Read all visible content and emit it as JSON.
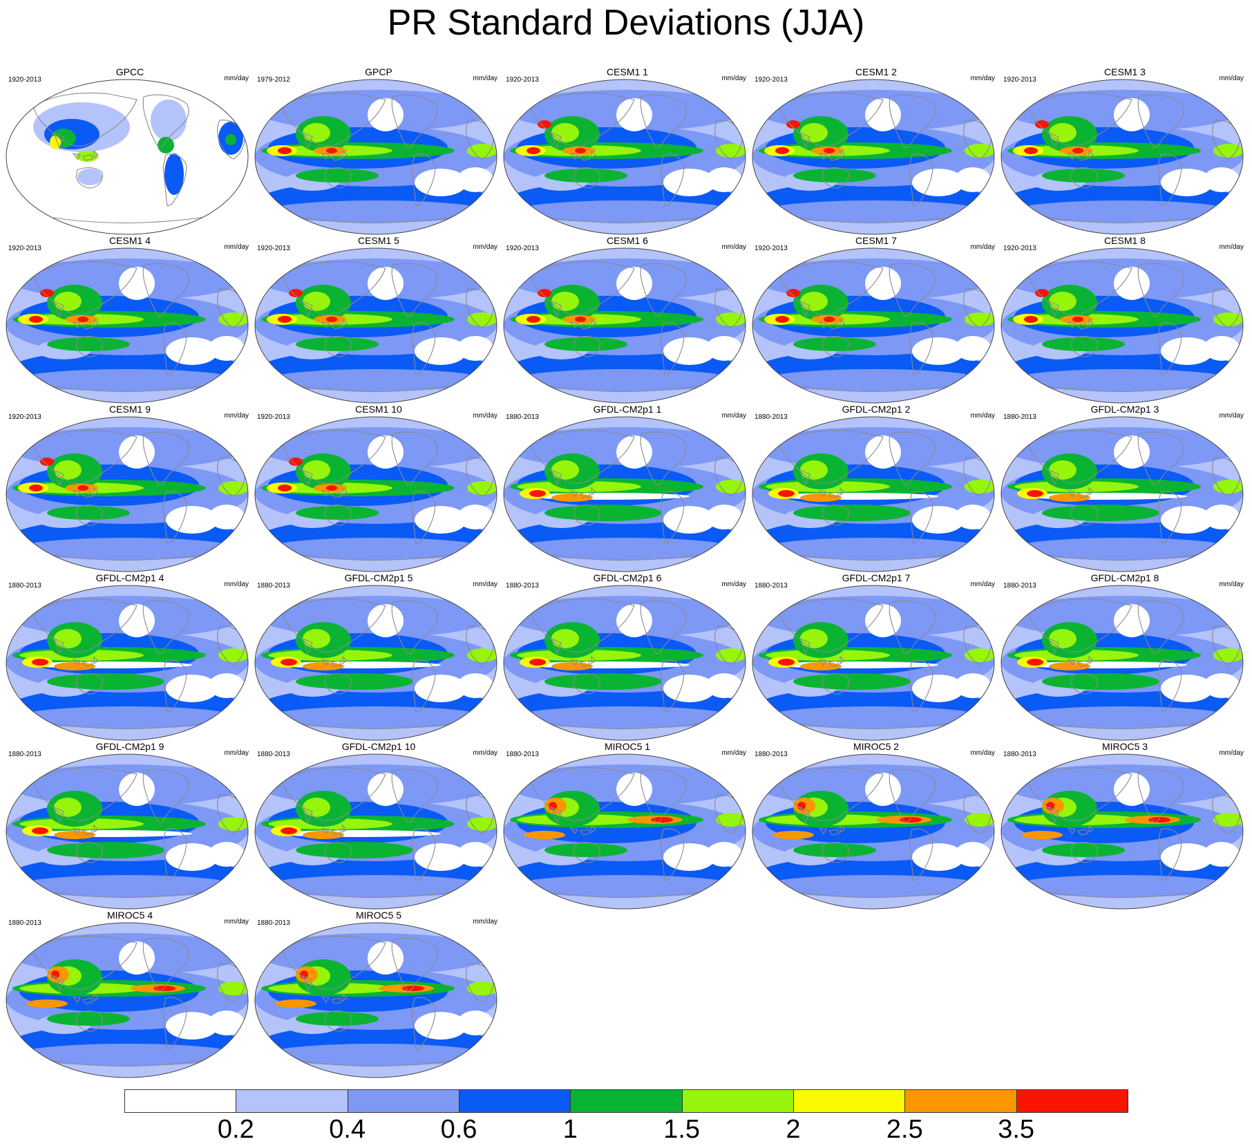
{
  "title": "PR Standard Deviations (JJA)",
  "units": "mm/day",
  "panels": [
    {
      "name": "GPCC",
      "years": "1920-2013",
      "family": "obs-land"
    },
    {
      "name": "GPCP",
      "years": "1979-2012",
      "family": "obs"
    },
    {
      "name": "CESM1 1",
      "years": "1920-2013",
      "family": "cesm"
    },
    {
      "name": "CESM1 2",
      "years": "1920-2013",
      "family": "cesm"
    },
    {
      "name": "CESM1 3",
      "years": "1920-2013",
      "family": "cesm"
    },
    {
      "name": "CESM1 4",
      "years": "1920-2013",
      "family": "cesm"
    },
    {
      "name": "CESM1 5",
      "years": "1920-2013",
      "family": "cesm"
    },
    {
      "name": "CESM1 6",
      "years": "1920-2013",
      "family": "cesm"
    },
    {
      "name": "CESM1 7",
      "years": "1920-2013",
      "family": "cesm"
    },
    {
      "name": "CESM1 8",
      "years": "1920-2013",
      "family": "cesm"
    },
    {
      "name": "CESM1 9",
      "years": "1920-2013",
      "family": "cesm"
    },
    {
      "name": "CESM1 10",
      "years": "1920-2013",
      "family": "cesm"
    },
    {
      "name": "GFDL-CM2p1 1",
      "years": "1880-2013",
      "family": "gfdl"
    },
    {
      "name": "GFDL-CM2p1 2",
      "years": "1880-2013",
      "family": "gfdl"
    },
    {
      "name": "GFDL-CM2p1 3",
      "years": "1880-2013",
      "family": "gfdl"
    },
    {
      "name": "GFDL-CM2p1 4",
      "years": "1880-2013",
      "family": "gfdl"
    },
    {
      "name": "GFDL-CM2p1 5",
      "years": "1880-2013",
      "family": "gfdl"
    },
    {
      "name": "GFDL-CM2p1 6",
      "years": "1880-2013",
      "family": "gfdl"
    },
    {
      "name": "GFDL-CM2p1 7",
      "years": "1880-2013",
      "family": "gfdl"
    },
    {
      "name": "GFDL-CM2p1 8",
      "years": "1880-2013",
      "family": "gfdl"
    },
    {
      "name": "GFDL-CM2p1 9",
      "years": "1880-2013",
      "family": "gfdl"
    },
    {
      "name": "GFDL-CM2p1 10",
      "years": "1880-2013",
      "family": "gfdl"
    },
    {
      "name": "MIROC5 1",
      "years": "1880-2013",
      "family": "miroc"
    },
    {
      "name": "MIROC5 2",
      "years": "1880-2013",
      "family": "miroc"
    },
    {
      "name": "MIROC5 3",
      "years": "1880-2013",
      "family": "miroc"
    },
    {
      "name": "MIROC5 4",
      "years": "1880-2013",
      "family": "miroc"
    },
    {
      "name": "MIROC5 5",
      "years": "1880-2013",
      "family": "miroc"
    }
  ],
  "colorbar": {
    "colors": [
      "#ffffff",
      "#b4c3fa",
      "#7d98f5",
      "#0a5af5",
      "#0ab432",
      "#96f50a",
      "#fafa00",
      "#fa9600",
      "#fa1400"
    ],
    "labels": [
      "0.2",
      "0.4",
      "0.6",
      "1",
      "1.5",
      "2",
      "2.5",
      "3.5"
    ]
  },
  "colors": {
    "ocean_base": "#b4c3fa",
    "coastline": "#8a8a8a",
    "outline": "#444444"
  }
}
